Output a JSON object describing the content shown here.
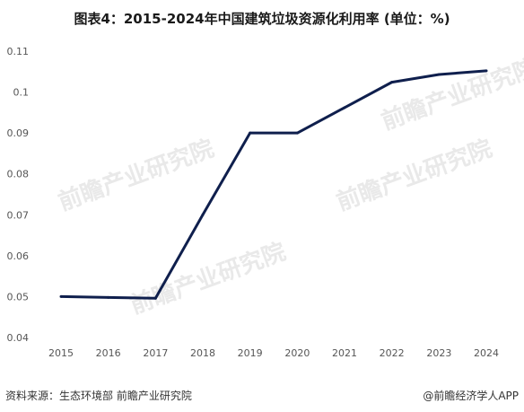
{
  "chart_data": {
    "type": "line",
    "title": "图表4：2015-2024年中国建筑垃圾资源化利用率 (单位：%)",
    "categories": [
      "2015",
      "2016",
      "2017",
      "2018",
      "2019",
      "2020",
      "2021",
      "2022",
      "2023",
      "2024"
    ],
    "series": [
      {
        "values": [
          0.05,
          0.0498,
          0.0496,
          0.07,
          0.09,
          0.09,
          0.0962,
          0.1024,
          0.1043,
          0.1052
        ]
      }
    ],
    "yticks": [
      "0.04",
      "0.05",
      "0.06",
      "0.07",
      "0.08",
      "0.09",
      "0.1",
      "0.11"
    ],
    "ylim": [
      0.04,
      0.11
    ],
    "grid": false,
    "line_color": "#0f1f4d"
  },
  "footer": {
    "source": "资料来源：生态环境部 前瞻产业研究院",
    "brand": "@前瞻经济学人APP"
  },
  "watermark": {
    "text": "前瞻产业研究院"
  }
}
